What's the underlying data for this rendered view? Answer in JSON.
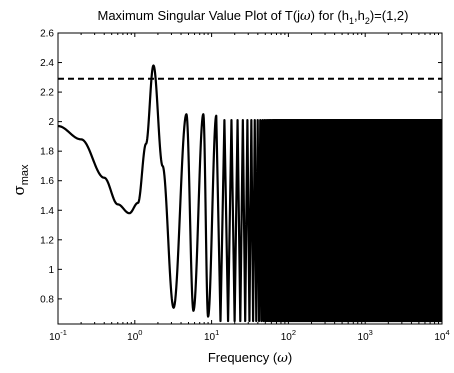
{
  "chart_data": {
    "type": "line",
    "title": {
      "prefix": "Maximum Singular Value Plot of T(j",
      "omega": "ω",
      "mid": ") for (h",
      "sub1": "1",
      "comma": ",h",
      "sub2": "2",
      "suffix": ")=(1,2)"
    },
    "xlabel": {
      "prefix": "Frequency (",
      "omega": "ω",
      "suffix": ")"
    },
    "ylabel": {
      "sigma": "σ",
      "sub": "max"
    },
    "x_scale": "log",
    "xlim": [
      0.1,
      10000
    ],
    "ylim": [
      0.63,
      2.6
    ],
    "x_ticks": [
      {
        "value": 0.1,
        "base": "10",
        "exp": "-1"
      },
      {
        "value": 1,
        "base": "10",
        "exp": "0"
      },
      {
        "value": 10,
        "base": "10",
        "exp": "1"
      },
      {
        "value": 100,
        "base": "10",
        "exp": "2"
      },
      {
        "value": 1000,
        "base": "10",
        "exp": "3"
      },
      {
        "value": 10000,
        "base": "10",
        "exp": "4"
      }
    ],
    "y_ticks": [
      {
        "value": 0.8,
        "label": "0.8"
      },
      {
        "value": 1.0,
        "label": "1"
      },
      {
        "value": 1.2,
        "label": "1.2"
      },
      {
        "value": 1.4,
        "label": "1.4"
      },
      {
        "value": 1.6,
        "label": "1.6"
      },
      {
        "value": 1.8,
        "label": "1.8"
      },
      {
        "value": 2.0,
        "label": "2"
      },
      {
        "value": 2.2,
        "label": "2.2"
      },
      {
        "value": 2.4,
        "label": "2.4"
      },
      {
        "value": 2.6,
        "label": "2.6"
      }
    ],
    "grid": false,
    "series": [
      {
        "style": "solid",
        "color": "#000000",
        "description_points": [
          [
            0.1,
            1.97
          ],
          [
            0.2,
            1.88
          ],
          [
            0.4,
            1.62
          ],
          [
            0.6,
            1.44
          ],
          [
            0.85,
            1.38
          ],
          [
            1.1,
            1.45
          ],
          [
            1.4,
            1.85
          ],
          [
            1.75,
            2.38
          ],
          [
            2.3,
            1.7
          ],
          [
            3.2,
            0.74
          ],
          [
            4.7,
            2.05
          ],
          [
            5.8,
            0.72
          ],
          [
            7.8,
            2.05
          ],
          [
            9.0,
            0.68
          ],
          [
            11.5,
            2.04
          ]
        ],
        "oscillation": {
          "x_start": 11.5,
          "x_end": 10000,
          "min": 0.65,
          "max": 2.01
        }
      },
      {
        "style": "dashed",
        "color": "#000000",
        "constant_y": 2.29
      }
    ]
  }
}
